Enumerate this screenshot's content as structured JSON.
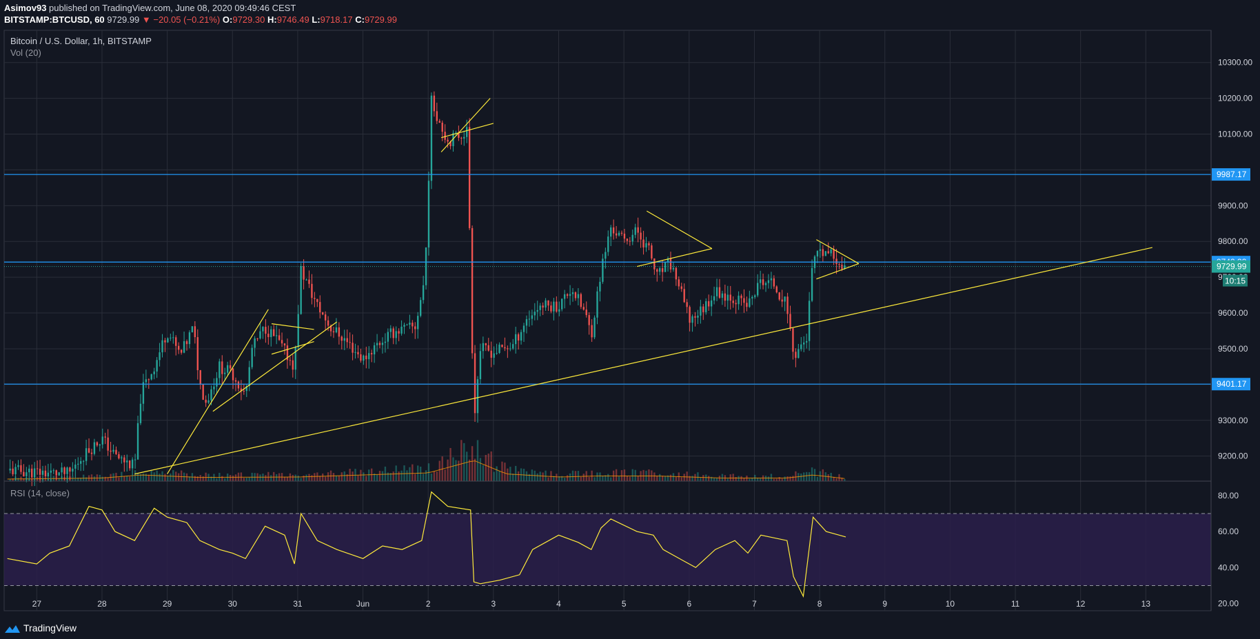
{
  "header": {
    "publisher": "Asimov93",
    "published_text": "published on TradingView.com, June 08, 2020 09:49:46 CEST",
    "symbol": "BITSTAMP:BTCUSD, 60",
    "last": "9729.99",
    "change": "−20.05 (−0.21%)",
    "o_label": "O:",
    "o_value": "9729.30",
    "h_label": "H:",
    "h_value": "9746.49",
    "l_label": "L:",
    "l_value": "9718.17",
    "c_label": "C:",
    "c_value": "9729.99"
  },
  "legend": {
    "title": "Bitcoin / U.S. Dollar, 1h, BITSTAMP",
    "volume": "Vol (20)",
    "rsi": "RSI (14, close)"
  },
  "footer": {
    "brand": "TradingView"
  },
  "colors": {
    "background": "#131722",
    "grid": "#2a2e39",
    "up": "#26a69a",
    "down": "#ef5350",
    "drawing": "#ffeb3b",
    "hline": "#2196f3",
    "rsi_line": "#ffeb3b",
    "rsi_band": "#2a1e4a"
  },
  "chart_data": [
    {
      "type": "candlestick",
      "title": "Bitcoin / U.S. Dollar, 1h, BITSTAMP",
      "ylim": [
        9130,
        10390
      ],
      "xlim": [
        -0.5,
        18
      ],
      "y_ticks": [
        9200,
        9300,
        9400,
        9500,
        9600,
        9700,
        9800,
        9900,
        10000,
        10100,
        10200,
        10300
      ],
      "y_tick_labels": [
        "9200.00",
        "9300.00",
        "9400.00",
        "9500.00",
        "9600.00",
        "9700.00",
        "9800.00",
        "9900.00",
        "",
        "10100.00",
        "10200.00",
        "10300.00"
      ],
      "x_ticks": [
        0,
        1,
        2,
        3,
        4,
        5,
        6,
        7,
        8,
        9,
        10,
        11,
        12,
        13,
        14,
        15,
        16,
        17
      ],
      "x_tick_labels": [
        "27",
        "28",
        "29",
        "30",
        "31",
        "Jun",
        "2",
        "3",
        "4",
        "5",
        "6",
        "7",
        "8",
        "9",
        "10",
        "11",
        "12",
        "13"
      ],
      "close_path": [
        [
          -0.45,
          9160
        ],
        [
          0.5,
          9150
        ],
        [
          0.7,
          9200
        ],
        [
          1.0,
          9250
        ],
        [
          1.2,
          9200
        ],
        [
          1.5,
          9170
        ],
        [
          1.6,
          9380
        ],
        [
          1.8,
          9450
        ],
        [
          2.0,
          9550
        ],
        [
          2.2,
          9480
        ],
        [
          2.4,
          9560
        ],
        [
          2.5,
          9400
        ],
        [
          2.6,
          9350
        ],
        [
          2.8,
          9450
        ],
        [
          3.0,
          9430
        ],
        [
          3.2,
          9370
        ],
        [
          3.3,
          9500
        ],
        [
          3.5,
          9560
        ],
        [
          3.7,
          9520
        ],
        [
          3.95,
          9450
        ],
        [
          4.05,
          9720
        ],
        [
          4.3,
          9620
        ],
        [
          4.5,
          9560
        ],
        [
          4.7,
          9530
        ],
        [
          5.0,
          9470
        ],
        [
          5.2,
          9510
        ],
        [
          5.5,
          9550
        ],
        [
          5.8,
          9560
        ],
        [
          5.95,
          9700
        ],
        [
          6.05,
          10190
        ],
        [
          6.3,
          10080
        ],
        [
          6.6,
          10110
        ],
        [
          6.7,
          9300
        ],
        [
          6.8,
          9500
        ],
        [
          7.0,
          9490
        ],
        [
          7.3,
          9510
        ],
        [
          7.5,
          9580
        ],
        [
          7.7,
          9620
        ],
        [
          8.0,
          9620
        ],
        [
          8.2,
          9670
        ],
        [
          8.4,
          9600
        ],
        [
          8.5,
          9540
        ],
        [
          8.65,
          9720
        ],
        [
          8.8,
          9840
        ],
        [
          9.0,
          9800
        ],
        [
          9.2,
          9830
        ],
        [
          9.4,
          9770
        ],
        [
          9.5,
          9700
        ],
        [
          9.7,
          9740
        ],
        [
          9.8,
          9700
        ],
        [
          10.0,
          9580
        ],
        [
          10.2,
          9610
        ],
        [
          10.4,
          9660
        ],
        [
          10.6,
          9650
        ],
        [
          10.9,
          9620
        ],
        [
          11.1,
          9690
        ],
        [
          11.3,
          9680
        ],
        [
          11.5,
          9620
        ],
        [
          11.6,
          9480
        ],
        [
          11.8,
          9530
        ],
        [
          11.9,
          9750
        ],
        [
          12.1,
          9770
        ],
        [
          12.4,
          9730
        ]
      ],
      "volume_path": [
        [
          -0.45,
          0.1
        ],
        [
          1.0,
          0.15
        ],
        [
          1.6,
          0.3
        ],
        [
          2.5,
          0.18
        ],
        [
          4.0,
          0.2
        ],
        [
          6.0,
          0.4
        ],
        [
          6.7,
          1.0
        ],
        [
          7.2,
          0.35
        ],
        [
          8.0,
          0.2
        ],
        [
          8.6,
          0.25
        ],
        [
          9.5,
          0.25
        ],
        [
          10.5,
          0.15
        ],
        [
          11.5,
          0.15
        ],
        [
          11.9,
          0.3
        ],
        [
          12.4,
          0.12
        ]
      ],
      "horizontal_lines": [
        {
          "price": 9987.17,
          "label": "9987.17"
        },
        {
          "price": 9742.33,
          "label": "9742.33"
        },
        {
          "price": 9401.17,
          "label": "9401.17"
        }
      ],
      "last_price": {
        "price": 9729.99,
        "label": "9729.99",
        "countdown": "10:15"
      },
      "trendlines": [
        {
          "from": [
            1.5,
            9150
          ],
          "to": [
            17.1,
            9783
          ]
        },
        {
          "from": [
            2.0,
            9150
          ],
          "to": [
            3.55,
            9610
          ]
        },
        {
          "from": [
            2.7,
            9325
          ],
          "to": [
            4.6,
            9575
          ]
        },
        {
          "from": [
            6.2,
            10050
          ],
          "to": [
            6.95,
            10200
          ]
        },
        {
          "from": [
            6.2,
            10090
          ],
          "to": [
            7.0,
            10130
          ]
        },
        {
          "from": [
            3.6,
            9570
          ],
          "to": [
            4.25,
            9554
          ]
        },
        {
          "from": [
            3.6,
            9485
          ],
          "to": [
            4.25,
            9520
          ]
        },
        {
          "from": [
            9.35,
            9885
          ],
          "to": [
            10.35,
            9780
          ]
        },
        {
          "from": [
            9.2,
            9730
          ],
          "to": [
            10.35,
            9780
          ]
        },
        {
          "from": [
            11.95,
            9805
          ],
          "to": [
            12.6,
            9738
          ]
        },
        {
          "from": [
            11.95,
            9695
          ],
          "to": [
            12.6,
            9738
          ]
        }
      ]
    },
    {
      "type": "line",
      "title": "RSI (14, close)",
      "ylim": [
        16,
        88
      ],
      "y_ticks": [
        20,
        40,
        60,
        80
      ],
      "y_tick_labels": [
        "20.00",
        "40.00",
        "60.00",
        "80.00"
      ],
      "band": [
        30,
        70
      ],
      "series": [
        {
          "x": [
            -0.45,
            0.0,
            0.2,
            0.5,
            0.8,
            1.0,
            1.2,
            1.5,
            1.8,
            2.0,
            2.3,
            2.5,
            2.8,
            3.0,
            3.2,
            3.5,
            3.8,
            3.95,
            4.05,
            4.3,
            4.6,
            5.0,
            5.3,
            5.6,
            5.9,
            6.05,
            6.3,
            6.65,
            6.7,
            6.8,
            7.1,
            7.4,
            7.6,
            8.0,
            8.3,
            8.5,
            8.65,
            8.8,
            9.2,
            9.45,
            9.6,
            9.9,
            10.1,
            10.4,
            10.7,
            10.9,
            11.1,
            11.5,
            11.6,
            11.75,
            11.9,
            12.1,
            12.4
          ],
          "y": [
            45,
            42,
            48,
            52,
            74,
            72,
            60,
            55,
            73,
            68,
            65,
            55,
            50,
            48,
            45,
            63,
            58,
            42,
            70,
            55,
            50,
            45,
            52,
            50,
            55,
            82,
            74,
            72,
            32,
            31,
            33,
            36,
            50,
            58,
            54,
            50,
            62,
            67,
            60,
            58,
            50,
            44,
            40,
            50,
            55,
            48,
            58,
            55,
            35,
            24,
            68,
            60,
            57
          ]
        }
      ]
    }
  ]
}
